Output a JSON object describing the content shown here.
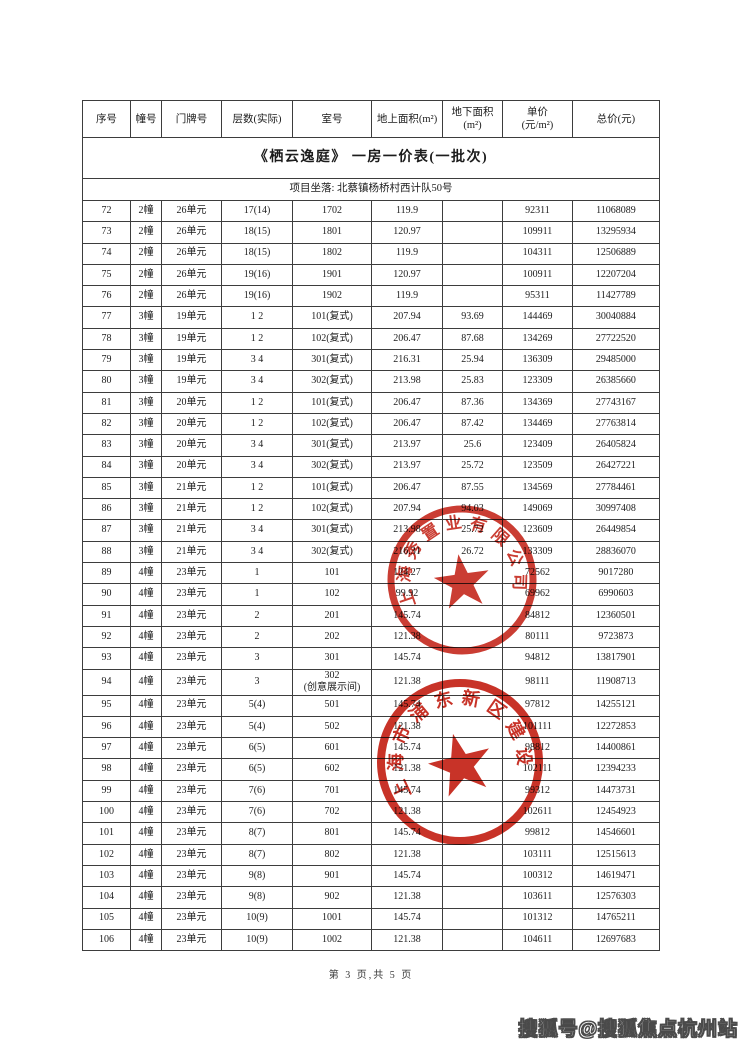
{
  "doc": {
    "title": "《栖云逸庭》 一房一价表(一批次)",
    "location": "项目坐落: 北蔡镇杨桥村西计队50号",
    "footer_page": "第 3 页,共 5 页",
    "watermark": "搜狐号@搜狐焦点杭州站"
  },
  "table": {
    "headers": [
      "序号",
      "幢号",
      "门牌号",
      "层数(实际)",
      "室号",
      "地上面积(m²)",
      "地下面积\n(m²)",
      "单价\n(元/m²)",
      "总价(元)"
    ],
    "col_keys": [
      "index",
      "building-no",
      "door-no",
      "floor",
      "room-no",
      "area-above",
      "area-below",
      "unit-price",
      "total-price"
    ],
    "rows": [
      [
        "72",
        "2幢",
        "26单元",
        "17(14)",
        "1702",
        "119.9",
        "",
        "92311",
        "11068089"
      ],
      [
        "73",
        "2幢",
        "26单元",
        "18(15)",
        "1801",
        "120.97",
        "",
        "109911",
        "13295934"
      ],
      [
        "74",
        "2幢",
        "26单元",
        "18(15)",
        "1802",
        "119.9",
        "",
        "104311",
        "12506889"
      ],
      [
        "75",
        "2幢",
        "26单元",
        "19(16)",
        "1901",
        "120.97",
        "",
        "100911",
        "12207204"
      ],
      [
        "76",
        "2幢",
        "26单元",
        "19(16)",
        "1902",
        "119.9",
        "",
        "95311",
        "11427789"
      ],
      [
        "77",
        "3幢",
        "19单元",
        "1 2",
        "101(复式)",
        "207.94",
        "93.69",
        "144469",
        "30040884"
      ],
      [
        "78",
        "3幢",
        "19单元",
        "1 2",
        "102(复式)",
        "206.47",
        "87.68",
        "134269",
        "27722520"
      ],
      [
        "79",
        "3幢",
        "19单元",
        "3 4",
        "301(复式)",
        "216.31",
        "25.94",
        "136309",
        "29485000"
      ],
      [
        "80",
        "3幢",
        "19单元",
        "3 4",
        "302(复式)",
        "213.98",
        "25.83",
        "123309",
        "26385660"
      ],
      [
        "81",
        "3幢",
        "20单元",
        "1 2",
        "101(复式)",
        "206.47",
        "87.36",
        "134369",
        "27743167"
      ],
      [
        "82",
        "3幢",
        "20单元",
        "1 2",
        "102(复式)",
        "206.47",
        "87.42",
        "134469",
        "27763814"
      ],
      [
        "83",
        "3幢",
        "20单元",
        "3 4",
        "301(复式)",
        "213.97",
        "25.6",
        "123409",
        "26405824"
      ],
      [
        "84",
        "3幢",
        "20单元",
        "3 4",
        "302(复式)",
        "213.97",
        "25.72",
        "123509",
        "26427221"
      ],
      [
        "85",
        "3幢",
        "21单元",
        "1 2",
        "101(复式)",
        "206.47",
        "87.55",
        "134569",
        "27784461"
      ],
      [
        "86",
        "3幢",
        "21单元",
        "1 2",
        "102(复式)",
        "207.94",
        "94.03",
        "149069",
        "30997408"
      ],
      [
        "87",
        "3幢",
        "21单元",
        "3 4",
        "301(复式)",
        "213.98",
        "25.72",
        "123609",
        "26449854"
      ],
      [
        "88",
        "3幢",
        "21单元",
        "3 4",
        "302(复式)",
        "216.31",
        "26.72",
        "133309",
        "28836070"
      ],
      [
        "89",
        "4幢",
        "23单元",
        "1",
        "101",
        "124.27",
        "",
        "72562",
        "9017280"
      ],
      [
        "90",
        "4幢",
        "23单元",
        "1",
        "102",
        "99.92",
        "",
        "69962",
        "6990603"
      ],
      [
        "91",
        "4幢",
        "23单元",
        "2",
        "201",
        "145.74",
        "",
        "84812",
        "12360501"
      ],
      [
        "92",
        "4幢",
        "23单元",
        "2",
        "202",
        "121.38",
        "",
        "80111",
        "9723873"
      ],
      [
        "93",
        "4幢",
        "23单元",
        "3",
        "301",
        "145.74",
        "",
        "94812",
        "13817901"
      ],
      [
        "94",
        "4幢",
        "23单元",
        "3",
        "302\n(创意展示间)",
        "121.38",
        "",
        "98111",
        "11908713"
      ],
      [
        "95",
        "4幢",
        "23单元",
        "5(4)",
        "501",
        "145.74",
        "",
        "97812",
        "14255121"
      ],
      [
        "96",
        "4幢",
        "23单元",
        "5(4)",
        "502",
        "121.38",
        "",
        "101111",
        "12272853"
      ],
      [
        "97",
        "4幢",
        "23单元",
        "6(5)",
        "601",
        "145.74",
        "",
        "98812",
        "14400861"
      ],
      [
        "98",
        "4幢",
        "23单元",
        "6(5)",
        "602",
        "121.38",
        "",
        "102111",
        "12394233"
      ],
      [
        "99",
        "4幢",
        "23单元",
        "7(6)",
        "701",
        "145.74",
        "",
        "99312",
        "14473731"
      ],
      [
        "100",
        "4幢",
        "23单元",
        "7(6)",
        "702",
        "121.38",
        "",
        "102611",
        "12454923"
      ],
      [
        "101",
        "4幢",
        "23单元",
        "8(7)",
        "801",
        "145.74",
        "",
        "99812",
        "14546601"
      ],
      [
        "102",
        "4幢",
        "23单元",
        "8(7)",
        "802",
        "121.38",
        "",
        "103111",
        "12515613"
      ],
      [
        "103",
        "4幢",
        "23单元",
        "9(8)",
        "901",
        "145.74",
        "",
        "100312",
        "14619471"
      ],
      [
        "104",
        "4幢",
        "23单元",
        "9(8)",
        "902",
        "121.38",
        "",
        "103611",
        "12576303"
      ],
      [
        "105",
        "4幢",
        "23单元",
        "10(9)",
        "1001",
        "145.74",
        "",
        "101312",
        "14765211"
      ],
      [
        "106",
        "4幢",
        "23单元",
        "10(9)",
        "1002",
        "121.38",
        "",
        "104611",
        "12697683"
      ]
    ]
  },
  "stamps": {
    "ink_color": "#c5281c",
    "company_seal_text": "上海秀置业有限公司",
    "district_seal_text": "上海市浦东新区建设"
  }
}
